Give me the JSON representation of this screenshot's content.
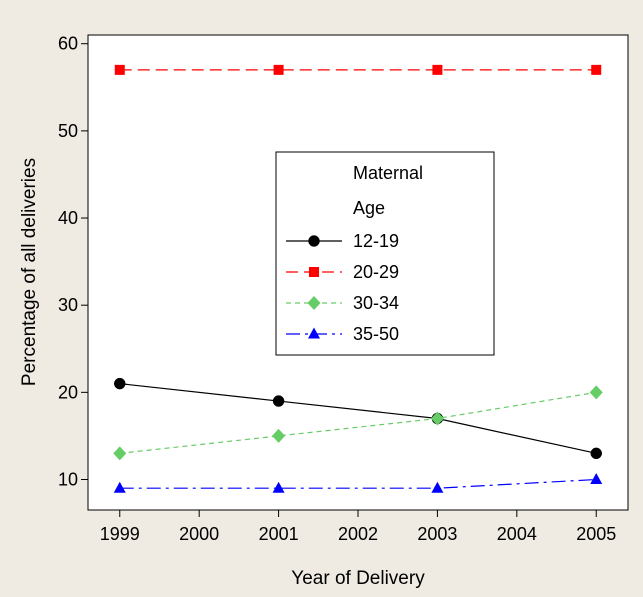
{
  "chart_data": {
    "type": "line",
    "title": "",
    "xlabel": "Year of Delivery",
    "ylabel": "Percentage of all deliveries",
    "x": [
      1999,
      2001,
      2003,
      2005
    ],
    "xticks": [
      "1999",
      "2000",
      "2001",
      "2002",
      "2003",
      "2004",
      "2005"
    ],
    "yticks": [
      "10",
      "20",
      "30",
      "40",
      "50",
      "60"
    ],
    "xlim": [
      1998.6,
      2005.4
    ],
    "ylim": [
      6.5,
      61
    ],
    "grid": false,
    "legend": {
      "title_line1": "Maternal",
      "title_line2": "Age",
      "placement": "center-right"
    },
    "series": [
      {
        "name": "12-19",
        "values": [
          21,
          19,
          17,
          13
        ],
        "color": "#000000",
        "marker": "circle",
        "dash": "solid"
      },
      {
        "name": "20-29",
        "values": [
          57,
          57,
          57,
          57
        ],
        "color": "#ff0000",
        "marker": "square",
        "dash": "dashed"
      },
      {
        "name": "30-34",
        "values": [
          13,
          15,
          17,
          20
        ],
        "color": "#66cc66",
        "marker": "diamond",
        "dash": "dotted"
      },
      {
        "name": "35-50",
        "values": [
          9,
          9,
          9,
          10
        ],
        "color": "#0000ff",
        "marker": "triangle",
        "dash": "dashdot"
      }
    ]
  }
}
